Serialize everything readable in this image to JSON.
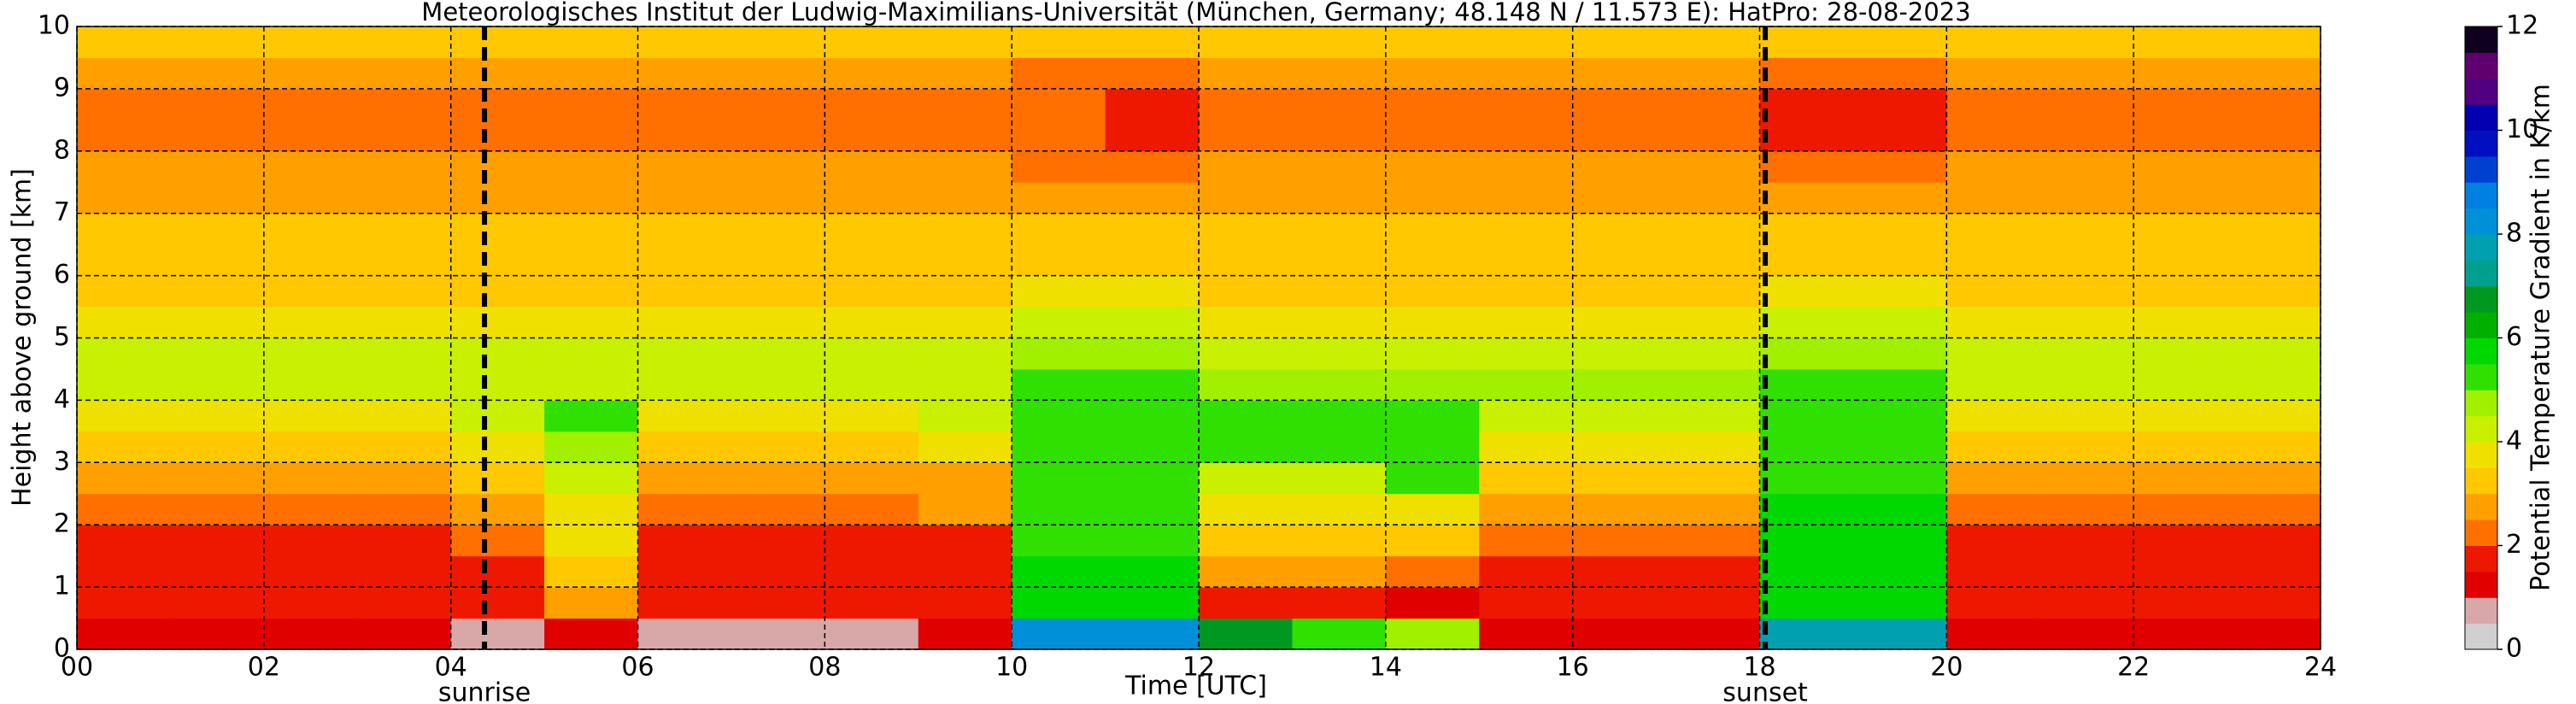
{
  "chart_data": {
    "type": "heatmap",
    "title": "Meteorologisches Institut der Ludwig-Maximilians-Universität (München, Germany; 48.148 N / 11.573 E):    HatPro: 28-08-2023",
    "x_label": "Time [UTC]",
    "y_label": "Height above ground [km]",
    "colorbar_label": "Potential Temperature Gradient in K/km",
    "xlim": [
      0,
      24
    ],
    "ylim": [
      0,
      10
    ],
    "clim": [
      0,
      12
    ],
    "xticks": [
      {
        "value": 0,
        "label": "00"
      },
      {
        "value": 2,
        "label": "02"
      },
      {
        "value": 4,
        "label": "04"
      },
      {
        "value": 6,
        "label": "06"
      },
      {
        "value": 8,
        "label": "08"
      },
      10,
      12,
      14,
      16,
      18,
      20,
      22,
      24
    ],
    "yticks": [
      0,
      1,
      2,
      3,
      4,
      5,
      6,
      7,
      8,
      9,
      10
    ],
    "cticks": [
      0,
      2,
      4,
      6,
      8,
      10,
      12
    ],
    "grid": true,
    "xbins": [
      0,
      1,
      2,
      3,
      4,
      5,
      6,
      7,
      8,
      9,
      10,
      11,
      12,
      13,
      14,
      15,
      16,
      17,
      18,
      19,
      20,
      21,
      22,
      23,
      24
    ],
    "ybins": [
      0,
      0.5,
      1,
      1.5,
      2,
      2.5,
      3,
      3.5,
      4,
      4.5,
      5,
      5.5,
      6,
      6.5,
      7,
      7.5,
      8,
      8.5,
      9,
      9.5,
      10
    ],
    "colors": [
      "#d0d0d0",
      "#d8a8a8",
      "#e00000",
      "#ee1800",
      "#ff7000",
      "#ffa000",
      "#ffc800",
      "#f0e000",
      "#c8f000",
      "#a0f000",
      "#30e000",
      "#00d800",
      "#00b000",
      "#009820",
      "#00a090",
      "#00a0b0",
      "#0090d8",
      "#0080e0",
      "#0040d0",
      "#0010c0",
      "#0000b0",
      "#500080",
      "#600070",
      "#100020"
    ],
    "z": [
      [
        1.0,
        1.6,
        1.6,
        1.8,
        2.4,
        2.8,
        3.4,
        3.9,
        4.3,
        4.2,
        3.8,
        3.4,
        3.2,
        3.0,
        2.8,
        2.5,
        2.3,
        2.3,
        2.6,
        3.0
      ],
      [
        1.0,
        1.6,
        1.6,
        1.8,
        2.4,
        2.8,
        3.4,
        3.9,
        4.3,
        4.2,
        3.8,
        3.4,
        3.2,
        3.0,
        2.8,
        2.5,
        2.3,
        2.3,
        2.6,
        3.0
      ],
      [
        1.0,
        1.6,
        1.6,
        1.8,
        2.4,
        2.8,
        3.4,
        3.9,
        4.3,
        4.2,
        3.8,
        3.4,
        3.2,
        3.0,
        2.8,
        2.5,
        2.3,
        2.3,
        2.6,
        3.0
      ],
      [
        1.0,
        1.6,
        1.6,
        1.8,
        2.4,
        2.8,
        3.4,
        3.9,
        4.3,
        4.2,
        3.8,
        3.4,
        3.2,
        3.0,
        2.8,
        2.5,
        2.3,
        2.3,
        2.6,
        3.0
      ],
      [
        0.8,
        1.6,
        1.7,
        2.0,
        2.6,
        3.0,
        3.6,
        4.2,
        4.3,
        4.2,
        3.8,
        3.4,
        3.2,
        3.0,
        2.8,
        2.5,
        2.3,
        2.3,
        2.6,
        3.0
      ],
      [
        1.2,
        2.5,
        3.2,
        3.5,
        3.8,
        4.2,
        4.6,
        5.0,
        4.4,
        4.2,
        3.8,
        3.4,
        3.2,
        3.0,
        2.8,
        2.5,
        2.3,
        2.3,
        2.6,
        3.0
      ],
      [
        0.5,
        1.6,
        1.6,
        1.8,
        2.4,
        2.8,
        3.4,
        3.9,
        4.3,
        4.2,
        3.8,
        3.4,
        3.2,
        3.0,
        2.8,
        2.5,
        2.3,
        2.3,
        2.6,
        3.0
      ],
      [
        0.5,
        1.6,
        1.6,
        1.8,
        2.4,
        2.8,
        3.4,
        3.9,
        4.3,
        4.2,
        3.8,
        3.4,
        3.2,
        3.0,
        2.8,
        2.5,
        2.3,
        2.3,
        2.6,
        3.0
      ],
      [
        0.5,
        1.6,
        1.6,
        1.8,
        2.4,
        2.8,
        3.4,
        3.9,
        4.3,
        4.2,
        3.8,
        3.4,
        3.2,
        3.0,
        2.8,
        2.5,
        2.3,
        2.3,
        2.6,
        3.0
      ],
      [
        1.0,
        1.6,
        1.6,
        1.9,
        2.5,
        2.9,
        3.5,
        4.0,
        4.3,
        4.2,
        3.8,
        3.4,
        3.2,
        3.0,
        2.8,
        2.5,
        2.3,
        2.3,
        2.6,
        3.0
      ],
      [
        8.0,
        5.6,
        5.5,
        5.4,
        5.3,
        5.2,
        5.3,
        5.4,
        5.2,
        4.6,
        4.0,
        3.6,
        3.3,
        3.0,
        2.8,
        2.4,
        2.0,
        2.0,
        2.4,
        3.0
      ],
      [
        8.0,
        5.6,
        5.5,
        5.4,
        5.3,
        5.2,
        5.3,
        5.4,
        5.2,
        4.6,
        4.0,
        3.6,
        3.3,
        3.0,
        2.8,
        2.4,
        1.8,
        1.8,
        2.4,
        3.0
      ],
      [
        6.5,
        1.6,
        2.8,
        3.4,
        3.8,
        4.4,
        5.0,
        5.0,
        4.6,
        4.2,
        3.8,
        3.4,
        3.2,
        3.0,
        2.8,
        2.5,
        2.2,
        2.2,
        2.6,
        3.0
      ],
      [
        5.0,
        1.5,
        2.6,
        3.2,
        3.6,
        4.2,
        5.0,
        5.2,
        4.8,
        4.3,
        3.8,
        3.4,
        3.2,
        3.0,
        2.8,
        2.5,
        2.3,
        2.3,
        2.6,
        3.0
      ],
      [
        4.5,
        1.4,
        2.2,
        3.0,
        3.8,
        5.0,
        5.3,
        5.2,
        4.8,
        4.3,
        3.8,
        3.4,
        3.2,
        3.0,
        2.8,
        2.5,
        2.3,
        2.3,
        2.6,
        3.0
      ],
      [
        1.2,
        1.5,
        1.9,
        2.4,
        2.8,
        3.2,
        3.6,
        4.4,
        4.5,
        4.3,
        3.8,
        3.4,
        3.2,
        3.0,
        2.8,
        2.5,
        2.3,
        2.3,
        2.6,
        3.0
      ],
      [
        1.2,
        1.5,
        1.9,
        2.4,
        2.8,
        3.2,
        3.6,
        4.4,
        4.5,
        4.3,
        3.8,
        3.4,
        3.2,
        3.0,
        2.8,
        2.5,
        2.3,
        2.3,
        2.6,
        3.0
      ],
      [
        1.2,
        1.5,
        1.9,
        2.4,
        2.8,
        3.2,
        3.6,
        4.4,
        4.5,
        4.3,
        3.8,
        3.4,
        3.2,
        3.0,
        2.8,
        2.5,
        2.3,
        2.3,
        2.6,
        3.0
      ],
      [
        7.5,
        5.8,
        5.7,
        5.6,
        5.5,
        5.4,
        5.4,
        5.3,
        5.0,
        4.5,
        4.0,
        3.6,
        3.3,
        3.0,
        2.8,
        2.3,
        1.6,
        1.6,
        2.2,
        3.0
      ],
      [
        7.5,
        5.8,
        5.7,
        5.6,
        5.5,
        5.4,
        5.4,
        5.3,
        5.0,
        4.5,
        4.0,
        3.6,
        3.3,
        3.0,
        2.8,
        2.3,
        1.6,
        1.6,
        2.2,
        3.0
      ],
      [
        1.2,
        1.6,
        1.6,
        1.8,
        2.4,
        2.8,
        3.4,
        3.9,
        4.3,
        4.2,
        3.8,
        3.4,
        3.2,
        3.0,
        2.8,
        2.5,
        2.3,
        2.3,
        2.6,
        3.0
      ],
      [
        1.2,
        1.6,
        1.6,
        1.8,
        2.4,
        2.8,
        3.4,
        3.9,
        4.3,
        4.2,
        3.8,
        3.4,
        3.2,
        3.0,
        2.8,
        2.5,
        2.3,
        2.3,
        2.6,
        3.0
      ],
      [
        1.2,
        1.6,
        1.6,
        1.8,
        2.4,
        2.8,
        3.4,
        3.9,
        4.3,
        4.2,
        3.8,
        3.4,
        3.2,
        3.0,
        2.8,
        2.5,
        2.3,
        2.3,
        2.6,
        3.0
      ],
      [
        1.0,
        1.6,
        1.6,
        1.8,
        2.4,
        2.8,
        3.4,
        3.9,
        4.3,
        4.2,
        3.8,
        3.4,
        3.2,
        3.0,
        2.8,
        2.5,
        2.3,
        2.3,
        2.6,
        3.0
      ]
    ],
    "annotations": [
      {
        "x": 4.36,
        "text": "sunrise"
      },
      {
        "x": 18.06,
        "text": "sunset"
      }
    ]
  }
}
